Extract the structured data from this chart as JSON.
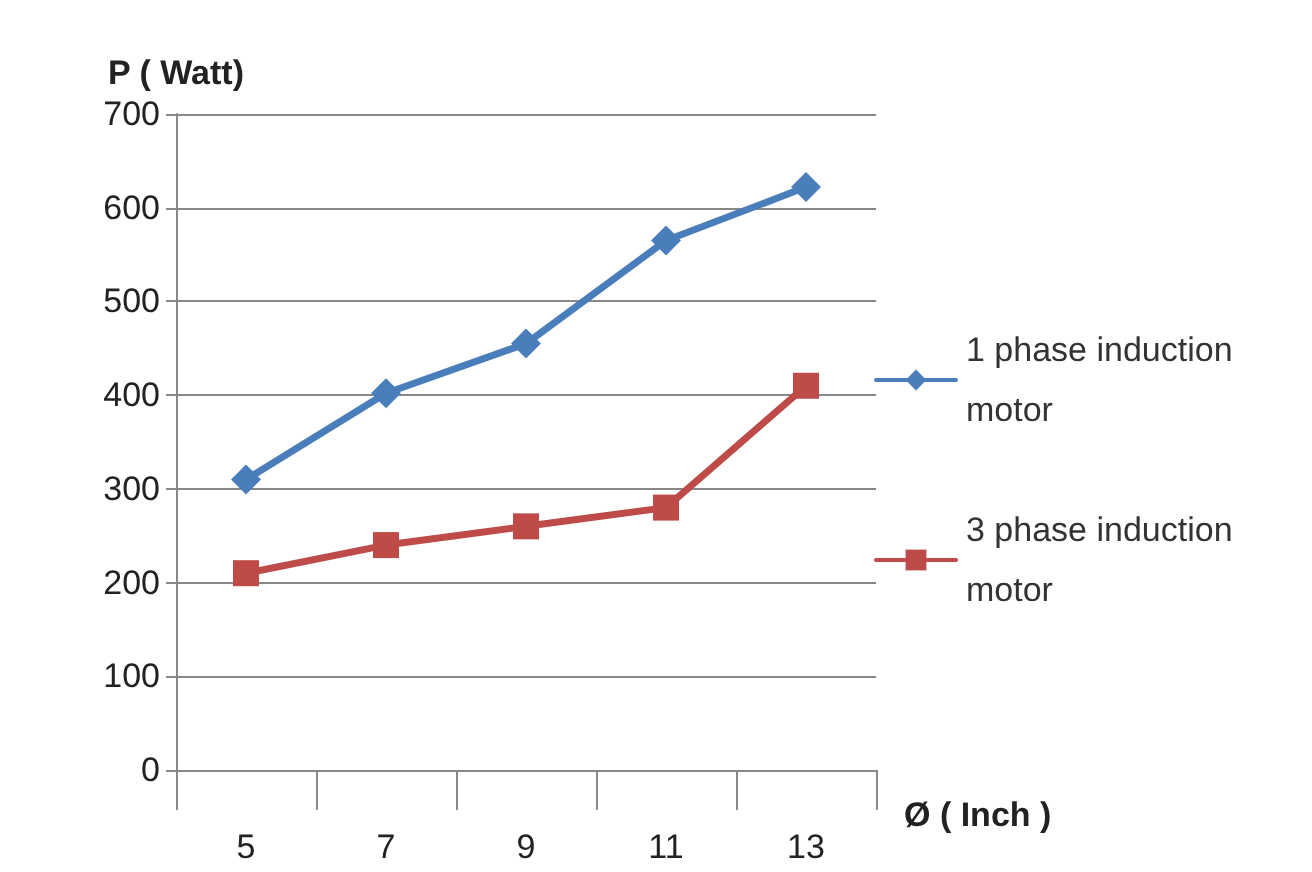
{
  "chart_data": {
    "type": "line",
    "ylabel": "P ( Watt)",
    "xlabel": "Ø ( Inch )",
    "categories": [
      "5",
      "7",
      "9",
      "11",
      "13"
    ],
    "series": [
      {
        "name": "1 phase induction motor",
        "color": "#4a7ebb",
        "marker": "diamond",
        "values": [
          310,
          402,
          455,
          565,
          622
        ]
      },
      {
        "name": "3 phase induction motor",
        "color": "#be4b48",
        "marker": "square",
        "values": [
          210,
          240,
          260,
          280,
          410
        ]
      }
    ],
    "ylim": [
      0,
      700
    ],
    "yticks": [
      0,
      100,
      200,
      300,
      400,
      500,
      600,
      700
    ],
    "grid": "y",
    "legend": "right",
    "line_style": "solid"
  }
}
